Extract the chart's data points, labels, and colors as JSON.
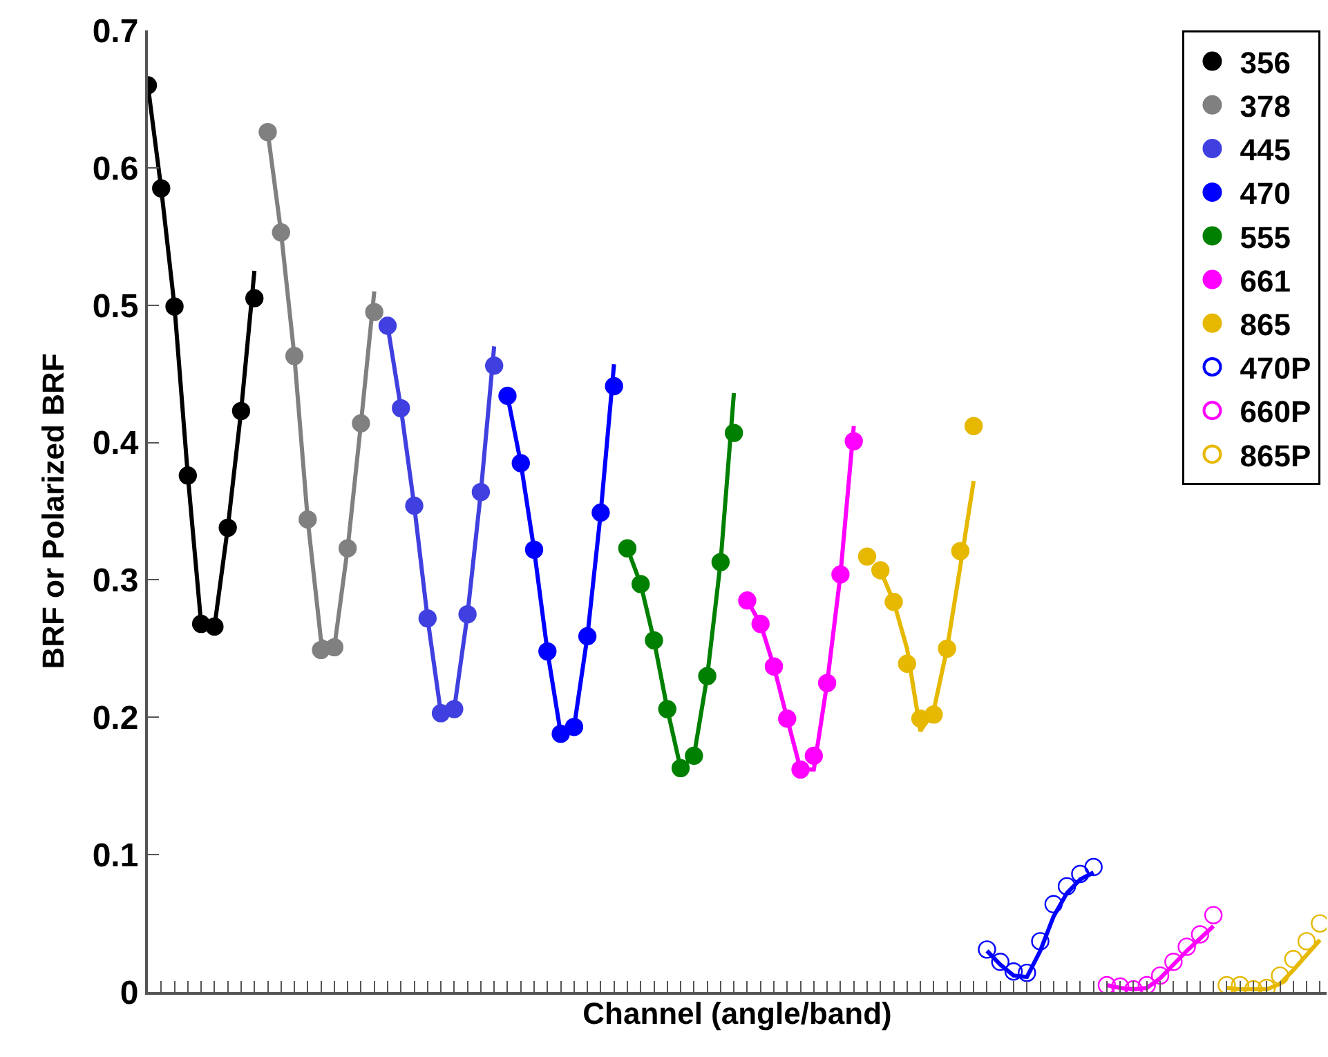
{
  "chart_data": {
    "type": "scatter",
    "xlabel": "Channel (angle/band)",
    "ylabel": "BRF or Polarized BRF",
    "ylim": [
      0,
      0.7
    ],
    "yticks": [
      0,
      0.1,
      0.2,
      0.3,
      0.4,
      0.5,
      0.6,
      0.7
    ],
    "categories": [
      null,
      null,
      null,
      null,
      null,
      null,
      null,
      null,
      null,
      null,
      null,
      null,
      null,
      null,
      null,
      null,
      null,
      null,
      null,
      null,
      null,
      null,
      null,
      null,
      null,
      null,
      null,
      null,
      null,
      null,
      null,
      null,
      null,
      null,
      null,
      null,
      null,
      null,
      null,
      null,
      null,
      null,
      null,
      null,
      null,
      null,
      null,
      null,
      null,
      null,
      null,
      null,
      null,
      null,
      null,
      null,
      null,
      null,
      null,
      null,
      null,
      null,
      null,
      null,
      null,
      null,
      null,
      null,
      null,
      null,
      null,
      null,
      null,
      null,
      null,
      null,
      null,
      null,
      null,
      null,
      null,
      null,
      null,
      null,
      null,
      null,
      null,
      null,
      null
    ],
    "legend": "top right",
    "series": [
      {
        "type": "line",
        "color": "#000000",
        "marker": "none",
        "values": [
          0.66,
          0.585,
          0.499,
          0.376,
          0.268,
          0.266,
          0.338,
          0.423,
          0.525,
          null,
          null,
          null,
          null,
          null,
          null,
          null,
          null,
          null,
          null,
          null,
          null,
          null,
          null,
          null,
          null,
          null,
          null,
          null,
          null,
          null,
          null,
          null,
          null,
          null,
          null,
          null,
          null,
          null,
          null,
          null,
          null,
          null,
          null,
          null,
          null,
          null,
          null,
          null,
          null,
          null,
          null,
          null,
          null,
          null,
          null,
          null,
          null,
          null,
          null,
          null,
          null,
          null,
          null,
          null,
          null,
          null,
          null,
          null,
          null,
          null,
          null,
          null,
          null,
          null,
          null,
          null,
          null,
          null,
          null,
          null,
          null,
          null,
          null,
          null,
          null,
          null,
          null,
          null,
          null
        ]
      },
      {
        "type": "line",
        "color": "#808080",
        "marker": "none",
        "values": [
          null,
          null,
          null,
          null,
          null,
          null,
          null,
          null,
          null,
          0.626,
          0.553,
          0.463,
          0.344,
          0.256,
          0.251,
          0.323,
          0.414,
          0.51,
          null,
          null,
          null,
          null,
          null,
          null,
          null,
          null,
          null,
          null,
          null,
          null,
          null,
          null,
          null,
          null,
          null,
          null,
          null,
          null,
          null,
          null,
          null,
          null,
          null,
          null,
          null,
          null,
          null,
          null,
          null,
          null,
          null,
          null,
          null,
          null,
          null,
          null,
          null,
          null,
          null,
          null,
          null,
          null,
          null,
          null,
          null,
          null,
          null,
          null,
          null,
          null,
          null,
          null,
          null,
          null,
          null,
          null,
          null,
          null,
          null,
          null,
          null,
          null,
          null,
          null,
          null,
          null,
          null,
          null,
          null
        ]
      },
      {
        "type": "line",
        "color": "#4040e0",
        "marker": "none",
        "values": [
          null,
          null,
          null,
          null,
          null,
          null,
          null,
          null,
          null,
          null,
          null,
          null,
          null,
          null,
          null,
          null,
          null,
          null,
          0.485,
          0.425,
          0.354,
          0.272,
          0.203,
          0.206,
          0.275,
          0.364,
          0.47,
          null,
          null,
          null,
          null,
          null,
          null,
          null,
          null,
          null,
          null,
          null,
          null,
          null,
          null,
          null,
          null,
          null,
          null,
          null,
          null,
          null,
          null,
          null,
          null,
          null,
          null,
          null,
          null,
          null,
          null,
          null,
          null,
          null,
          null,
          null,
          null,
          null,
          null,
          null,
          null,
          null,
          null,
          null,
          null,
          null,
          null,
          null,
          null,
          null,
          null,
          null,
          null,
          null,
          null,
          null,
          null,
          null,
          null,
          null,
          null,
          null,
          null
        ]
      },
      {
        "type": "line",
        "color": "#0000ff",
        "marker": "none",
        "values": [
          null,
          null,
          null,
          null,
          null,
          null,
          null,
          null,
          null,
          null,
          null,
          null,
          null,
          null,
          null,
          null,
          null,
          null,
          null,
          null,
          null,
          null,
          null,
          null,
          null,
          null,
          null,
          0.434,
          0.385,
          0.322,
          0.248,
          0.188,
          0.193,
          0.259,
          0.349,
          0.457,
          null,
          null,
          null,
          null,
          null,
          null,
          null,
          null,
          null,
          null,
          null,
          null,
          null,
          null,
          null,
          null,
          null,
          null,
          null,
          null,
          null,
          null,
          null,
          null,
          null,
          null,
          null,
          null,
          null,
          null,
          null,
          null,
          null,
          null,
          null,
          null,
          null,
          null,
          null,
          null,
          null,
          null,
          null,
          null,
          null,
          null,
          null,
          null,
          null,
          null,
          null,
          null,
          null
        ]
      },
      {
        "type": "line",
        "color": "#008000",
        "marker": "none",
        "values": [
          null,
          null,
          null,
          null,
          null,
          null,
          null,
          null,
          null,
          null,
          null,
          null,
          null,
          null,
          null,
          null,
          null,
          null,
          null,
          null,
          null,
          null,
          null,
          null,
          null,
          null,
          null,
          null,
          null,
          null,
          null,
          null,
          null,
          null,
          null,
          null,
          0.323,
          0.297,
          0.256,
          0.206,
          0.163,
          0.172,
          0.23,
          0.313,
          0.436,
          null,
          null,
          null,
          null,
          null,
          null,
          null,
          null,
          null,
          null,
          null,
          null,
          null,
          null,
          null,
          null,
          null,
          null,
          null,
          null,
          null,
          null,
          null,
          null,
          null,
          null,
          null,
          null,
          null,
          null,
          null,
          null,
          null,
          null,
          null,
          null,
          null,
          null,
          null,
          null,
          null,
          null,
          null,
          null
        ]
      },
      {
        "type": "line",
        "color": "#ff00ff",
        "marker": "none",
        "values": [
          null,
          null,
          null,
          null,
          null,
          null,
          null,
          null,
          null,
          null,
          null,
          null,
          null,
          null,
          null,
          null,
          null,
          null,
          null,
          null,
          null,
          null,
          null,
          null,
          null,
          null,
          null,
          null,
          null,
          null,
          null,
          null,
          null,
          null,
          null,
          null,
          null,
          null,
          null,
          null,
          null,
          null,
          null,
          null,
          null,
          0.285,
          0.268,
          0.237,
          0.199,
          0.162,
          0.162,
          0.225,
          0.304,
          0.412,
          null,
          null,
          null,
          null,
          null,
          null,
          null,
          null,
          null,
          null,
          null,
          null,
          null,
          null,
          null,
          null,
          null,
          null,
          null,
          null,
          null,
          null,
          null,
          null,
          null,
          null,
          null,
          null,
          null,
          null,
          null,
          null,
          null,
          null,
          null
        ]
      },
      {
        "type": "line",
        "color": "#e6b800",
        "marker": "none",
        "values": [
          null,
          null,
          null,
          null,
          null,
          null,
          null,
          null,
          null,
          null,
          null,
          null,
          null,
          null,
          null,
          null,
          null,
          null,
          null,
          null,
          null,
          null,
          null,
          null,
          null,
          null,
          null,
          null,
          null,
          null,
          null,
          null,
          null,
          null,
          null,
          null,
          null,
          null,
          null,
          null,
          null,
          null,
          null,
          null,
          null,
          null,
          null,
          null,
          null,
          null,
          null,
          null,
          null,
          null,
          null,
          0.307,
          0.284,
          0.25,
          0.19,
          0.205,
          0.25,
          0.31,
          0.372,
          null,
          null,
          null,
          null,
          null,
          null,
          null,
          null,
          null,
          null,
          null,
          null,
          null,
          null,
          null,
          null,
          null,
          null,
          null,
          null,
          null,
          null,
          null,
          null,
          null,
          null
        ]
      },
      {
        "type": "line",
        "color": "#0000ff",
        "marker": "none",
        "values": [
          null,
          null,
          null,
          null,
          null,
          null,
          null,
          null,
          null,
          null,
          null,
          null,
          null,
          null,
          null,
          null,
          null,
          null,
          null,
          null,
          null,
          null,
          null,
          null,
          null,
          null,
          null,
          null,
          null,
          null,
          null,
          null,
          null,
          null,
          null,
          null,
          null,
          null,
          null,
          null,
          null,
          null,
          null,
          null,
          null,
          null,
          null,
          null,
          null,
          null,
          null,
          null,
          null,
          null,
          null,
          null,
          null,
          null,
          null,
          null,
          null,
          null,
          null,
          0.03,
          0.02,
          0.012,
          0.011,
          0.03,
          0.055,
          0.072,
          0.082,
          0.087,
          null,
          null,
          null,
          null,
          null,
          null,
          null,
          null,
          null,
          null,
          null,
          null,
          null,
          null,
          null,
          null,
          null
        ]
      },
      {
        "type": "line",
        "color": "#ff00ff",
        "marker": "none",
        "values": [
          null,
          null,
          null,
          null,
          null,
          null,
          null,
          null,
          null,
          null,
          null,
          null,
          null,
          null,
          null,
          null,
          null,
          null,
          null,
          null,
          null,
          null,
          null,
          null,
          null,
          null,
          null,
          null,
          null,
          null,
          null,
          null,
          null,
          null,
          null,
          null,
          null,
          null,
          null,
          null,
          null,
          null,
          null,
          null,
          null,
          null,
          null,
          null,
          null,
          null,
          null,
          null,
          null,
          null,
          null,
          null,
          null,
          null,
          null,
          null,
          null,
          null,
          null,
          null,
          null,
          null,
          null,
          null,
          null,
          null,
          null,
          null,
          0.005,
          0.003,
          0.002,
          0.003,
          0.01,
          0.02,
          0.03,
          0.039,
          0.048,
          null,
          null,
          null,
          null,
          null,
          null,
          null,
          null
        ]
      },
      {
        "type": "line",
        "color": "#e6b800",
        "marker": "none",
        "values": [
          null,
          null,
          null,
          null,
          null,
          null,
          null,
          null,
          null,
          null,
          null,
          null,
          null,
          null,
          null,
          null,
          null,
          null,
          null,
          null,
          null,
          null,
          null,
          null,
          null,
          null,
          null,
          null,
          null,
          null,
          null,
          null,
          null,
          null,
          null,
          null,
          null,
          null,
          null,
          null,
          null,
          null,
          null,
          null,
          null,
          null,
          null,
          null,
          null,
          null,
          null,
          null,
          null,
          null,
          null,
          null,
          null,
          null,
          null,
          null,
          null,
          null,
          null,
          null,
          null,
          null,
          null,
          null,
          null,
          null,
          null,
          null,
          null,
          null,
          null,
          null,
          null,
          null,
          null,
          null,
          null,
          0.003,
          0.002,
          0.002,
          0.002,
          0.006,
          0.016,
          0.027,
          0.038
        ]
      },
      {
        "name": "356",
        "color": "#000000",
        "marker": "circle",
        "values": [
          0.66,
          0.585,
          0.499,
          0.376,
          0.268,
          0.266,
          0.338,
          0.423,
          0.505,
          null,
          null,
          null,
          null,
          null,
          null,
          null,
          null,
          null,
          null,
          null,
          null,
          null,
          null,
          null,
          null,
          null,
          null,
          null,
          null,
          null,
          null,
          null,
          null,
          null,
          null,
          null,
          null,
          null,
          null,
          null,
          null,
          null,
          null,
          null,
          null,
          null,
          null,
          null,
          null,
          null,
          null,
          null,
          null,
          null,
          null,
          null,
          null,
          null,
          null,
          null,
          null,
          null,
          null,
          null,
          null,
          null,
          null,
          null,
          null,
          null,
          null,
          null,
          null,
          null,
          null,
          null,
          null,
          null,
          null,
          null,
          null,
          null,
          null,
          null,
          null,
          null,
          null,
          null,
          null
        ]
      },
      {
        "name": "378",
        "color": "#808080",
        "marker": "circle",
        "values": [
          null,
          null,
          null,
          null,
          null,
          null,
          null,
          null,
          null,
          0.626,
          0.553,
          0.463,
          0.344,
          0.249,
          0.251,
          0.323,
          0.414,
          0.495,
          null,
          null,
          null,
          null,
          null,
          null,
          null,
          null,
          null,
          null,
          null,
          null,
          null,
          null,
          null,
          null,
          null,
          null,
          null,
          null,
          null,
          null,
          null,
          null,
          null,
          null,
          null,
          null,
          null,
          null,
          null,
          null,
          null,
          null,
          null,
          null,
          null,
          null,
          null,
          null,
          null,
          null,
          null,
          null,
          null,
          null,
          null,
          null,
          null,
          null,
          null,
          null,
          null,
          null,
          null,
          null,
          null,
          null,
          null,
          null,
          null,
          null,
          null,
          null,
          null,
          null,
          null,
          null,
          null,
          null,
          null
        ]
      },
      {
        "name": "445",
        "color": "#4040e0",
        "marker": "circle",
        "values": [
          null,
          null,
          null,
          null,
          null,
          null,
          null,
          null,
          null,
          null,
          null,
          null,
          null,
          null,
          null,
          null,
          null,
          null,
          0.485,
          0.425,
          0.354,
          0.272,
          0.203,
          0.206,
          0.275,
          0.364,
          0.456,
          null,
          null,
          null,
          null,
          null,
          null,
          null,
          null,
          null,
          null,
          null,
          null,
          null,
          null,
          null,
          null,
          null,
          null,
          null,
          null,
          null,
          null,
          null,
          null,
          null,
          null,
          null,
          null,
          null,
          null,
          null,
          null,
          null,
          null,
          null,
          null,
          null,
          null,
          null,
          null,
          null,
          null,
          null,
          null,
          null,
          null,
          null,
          null,
          null,
          null,
          null,
          null,
          null,
          null,
          null,
          null,
          null,
          null,
          null,
          null,
          null,
          null
        ]
      },
      {
        "name": "470",
        "color": "#0000ff",
        "marker": "circle",
        "values": [
          null,
          null,
          null,
          null,
          null,
          null,
          null,
          null,
          null,
          null,
          null,
          null,
          null,
          null,
          null,
          null,
          null,
          null,
          null,
          null,
          null,
          null,
          null,
          null,
          null,
          null,
          null,
          0.434,
          0.385,
          0.322,
          0.248,
          0.188,
          0.193,
          0.259,
          0.349,
          0.441,
          null,
          null,
          null,
          null,
          null,
          null,
          null,
          null,
          null,
          null,
          null,
          null,
          null,
          null,
          null,
          null,
          null,
          null,
          null,
          null,
          null,
          null,
          null,
          null,
          null,
          null,
          null,
          null,
          null,
          null,
          null,
          null,
          null,
          null,
          null,
          null,
          null,
          null,
          null,
          null,
          null,
          null,
          null,
          null,
          null,
          null,
          null,
          null,
          null,
          null,
          null,
          null,
          null
        ]
      },
      {
        "name": "555",
        "color": "#008000",
        "marker": "circle",
        "values": [
          null,
          null,
          null,
          null,
          null,
          null,
          null,
          null,
          null,
          null,
          null,
          null,
          null,
          null,
          null,
          null,
          null,
          null,
          null,
          null,
          null,
          null,
          null,
          null,
          null,
          null,
          null,
          null,
          null,
          null,
          null,
          null,
          null,
          null,
          null,
          null,
          0.323,
          0.297,
          0.256,
          0.206,
          0.163,
          0.172,
          0.23,
          0.313,
          0.407,
          null,
          null,
          null,
          null,
          null,
          null,
          null,
          null,
          null,
          null,
          null,
          null,
          null,
          null,
          null,
          null,
          null,
          null,
          null,
          null,
          null,
          null,
          null,
          null,
          null,
          null,
          null,
          null,
          null,
          null,
          null,
          null,
          null,
          null,
          null,
          null,
          null,
          null,
          null,
          null,
          null,
          null,
          null,
          null
        ]
      },
      {
        "name": "661",
        "color": "#ff00ff",
        "marker": "circle",
        "values": [
          null,
          null,
          null,
          null,
          null,
          null,
          null,
          null,
          null,
          null,
          null,
          null,
          null,
          null,
          null,
          null,
          null,
          null,
          null,
          null,
          null,
          null,
          null,
          null,
          null,
          null,
          null,
          null,
          null,
          null,
          null,
          null,
          null,
          null,
          null,
          null,
          null,
          null,
          null,
          null,
          null,
          null,
          null,
          null,
          null,
          0.285,
          0.268,
          0.237,
          0.199,
          0.162,
          0.172,
          0.225,
          0.304,
          0.401,
          null,
          null,
          null,
          null,
          null,
          null,
          null,
          null,
          null,
          null,
          null,
          null,
          null,
          null,
          null,
          null,
          null,
          null,
          null,
          null,
          null,
          null,
          null,
          null,
          null,
          null,
          null,
          null,
          null,
          null,
          null,
          null,
          null,
          null,
          null
        ]
      },
      {
        "name": "865",
        "color": "#e6b800",
        "marker": "circle",
        "values": [
          null,
          null,
          null,
          null,
          null,
          null,
          null,
          null,
          null,
          null,
          null,
          null,
          null,
          null,
          null,
          null,
          null,
          null,
          null,
          null,
          null,
          null,
          null,
          null,
          null,
          null,
          null,
          null,
          null,
          null,
          null,
          null,
          null,
          null,
          null,
          null,
          null,
          null,
          null,
          null,
          null,
          null,
          null,
          null,
          null,
          null,
          null,
          null,
          null,
          null,
          null,
          null,
          null,
          null,
          0.317,
          0.307,
          0.284,
          0.239,
          0.199,
          0.202,
          0.25,
          0.321,
          0.412,
          null,
          null,
          null,
          null,
          null,
          null,
          null,
          null,
          null,
          null,
          null,
          null,
          null,
          null,
          null,
          null,
          null,
          null,
          null,
          null,
          null,
          null,
          null,
          null,
          null,
          null
        ]
      },
      {
        "name": "470P",
        "color": "#0000ff",
        "marker": "circle-open",
        "values": [
          null,
          null,
          null,
          null,
          null,
          null,
          null,
          null,
          null,
          null,
          null,
          null,
          null,
          null,
          null,
          null,
          null,
          null,
          null,
          null,
          null,
          null,
          null,
          null,
          null,
          null,
          null,
          null,
          null,
          null,
          null,
          null,
          null,
          null,
          null,
          null,
          null,
          null,
          null,
          null,
          null,
          null,
          null,
          null,
          null,
          null,
          null,
          null,
          null,
          null,
          null,
          null,
          null,
          null,
          null,
          null,
          null,
          null,
          null,
          null,
          null,
          null,
          null,
          0.031,
          0.022,
          0.015,
          0.014,
          0.037,
          0.064,
          0.077,
          0.086,
          0.091,
          null,
          null,
          null,
          null,
          null,
          null,
          null,
          null,
          null,
          null,
          null,
          null,
          null,
          null,
          null,
          null,
          null
        ]
      },
      {
        "name": "660P",
        "color": "#ff00ff",
        "marker": "circle-open",
        "values": [
          null,
          null,
          null,
          null,
          null,
          null,
          null,
          null,
          null,
          null,
          null,
          null,
          null,
          null,
          null,
          null,
          null,
          null,
          null,
          null,
          null,
          null,
          null,
          null,
          null,
          null,
          null,
          null,
          null,
          null,
          null,
          null,
          null,
          null,
          null,
          null,
          null,
          null,
          null,
          null,
          null,
          null,
          null,
          null,
          null,
          null,
          null,
          null,
          null,
          null,
          null,
          null,
          null,
          null,
          null,
          null,
          null,
          null,
          null,
          null,
          null,
          null,
          null,
          null,
          null,
          null,
          null,
          null,
          null,
          null,
          null,
          null,
          0.005,
          0.004,
          0.002,
          0.005,
          0.012,
          0.022,
          0.033,
          0.042,
          0.056,
          null,
          null,
          null,
          null,
          null,
          null,
          null,
          null
        ]
      },
      {
        "name": "865P",
        "color": "#e6b800",
        "marker": "circle-open",
        "values": [
          null,
          null,
          null,
          null,
          null,
          null,
          null,
          null,
          null,
          null,
          null,
          null,
          null,
          null,
          null,
          null,
          null,
          null,
          null,
          null,
          null,
          null,
          null,
          null,
          null,
          null,
          null,
          null,
          null,
          null,
          null,
          null,
          null,
          null,
          null,
          null,
          null,
          null,
          null,
          null,
          null,
          null,
          null,
          null,
          null,
          null,
          null,
          null,
          null,
          null,
          null,
          null,
          null,
          null,
          null,
          null,
          null,
          null,
          null,
          null,
          null,
          null,
          null,
          null,
          null,
          null,
          null,
          null,
          null,
          null,
          null,
          null,
          null,
          null,
          null,
          null,
          null,
          null,
          null,
          null,
          null,
          0.005,
          0.005,
          0.002,
          0.003,
          0.012,
          0.024,
          0.037,
          0.05
        ]
      }
    ]
  }
}
